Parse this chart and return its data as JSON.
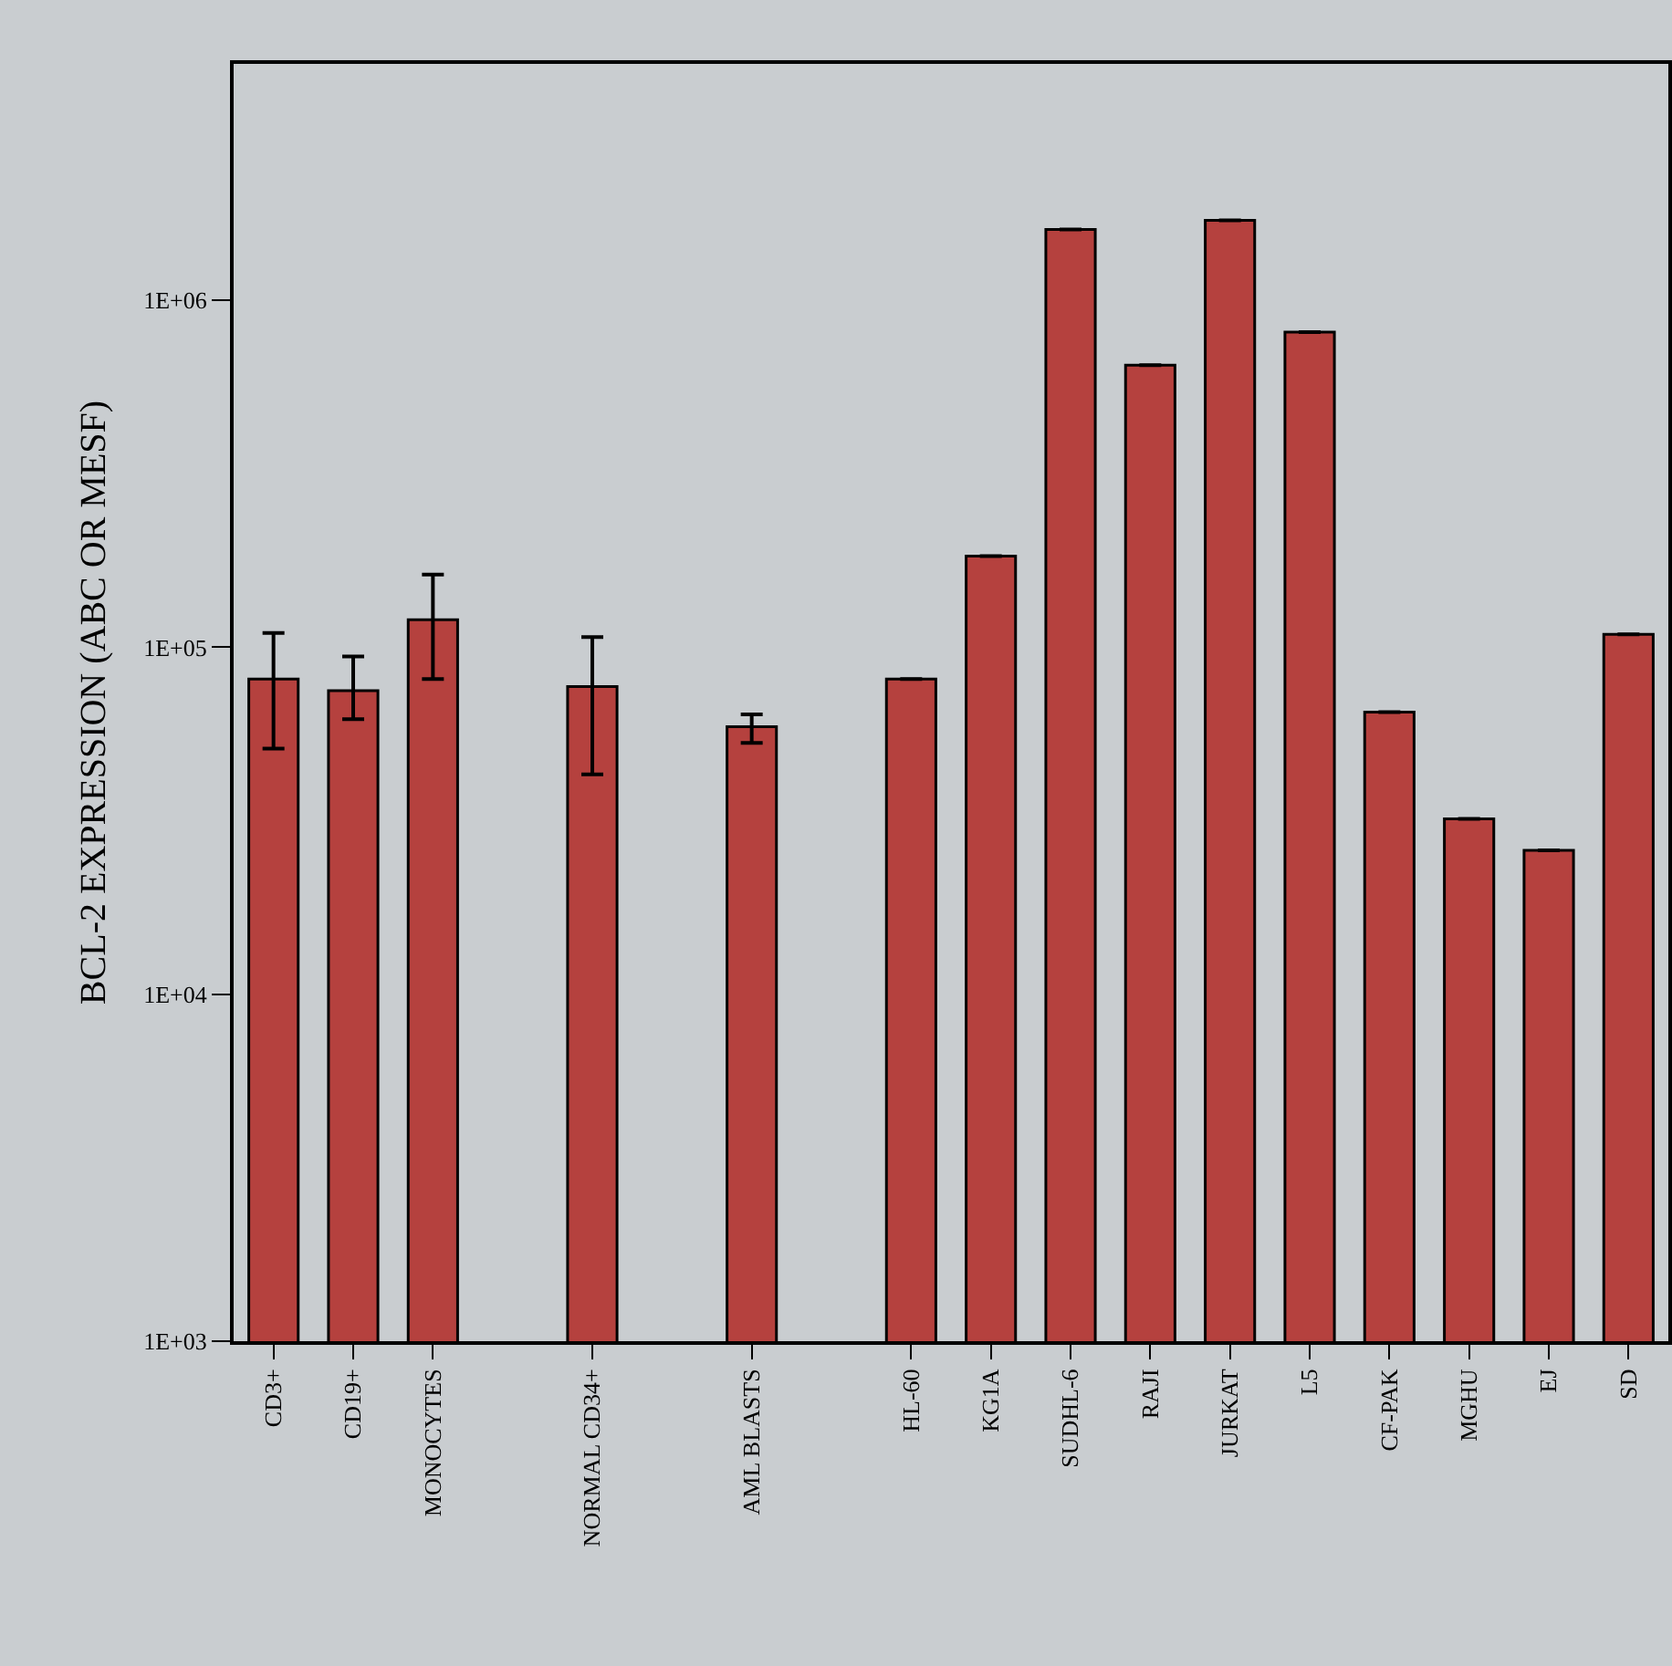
{
  "chart_data": {
    "type": "bar",
    "ylabel": "BCL-2 EXPRESSION (ABC OR MESF)",
    "categories": [
      "CD3+",
      "CD19+",
      "MONOCYTES",
      null,
      "NORMAL CD34+",
      null,
      "AML BLASTS",
      null,
      "HL-60",
      "KG1A",
      "SUDHL-6",
      "RAJI",
      "JURKAT",
      "L5",
      "CF-PAK",
      "MGHU",
      "EJ",
      "SD"
    ],
    "values": [
      81000,
      75000,
      120000,
      null,
      77000,
      null,
      59000,
      null,
      81000,
      183000,
      1600000,
      650000,
      1700000,
      810000,
      65000,
      32000,
      26000,
      109000
    ],
    "errors": [
      [
        51000,
        110000
      ],
      [
        62000,
        94000
      ],
      [
        81000,
        162000
      ],
      null,
      [
        43000,
        107000
      ],
      null,
      [
        53000,
        64000
      ],
      null,
      null,
      null,
      null,
      null,
      null,
      null,
      null,
      null,
      null,
      null
    ],
    "color": "#b5413e",
    "log": true,
    "ylim": [
      1000,
      4800000
    ],
    "yticks": [
      {
        "value": 1000,
        "label": "1E+03"
      },
      {
        "value": 10000,
        "label": "1E+04"
      },
      {
        "value": 100000,
        "label": "1E+05"
      },
      {
        "value": 1000000,
        "label": "1E+06"
      }
    ],
    "grid": false,
    "legend": false
  }
}
